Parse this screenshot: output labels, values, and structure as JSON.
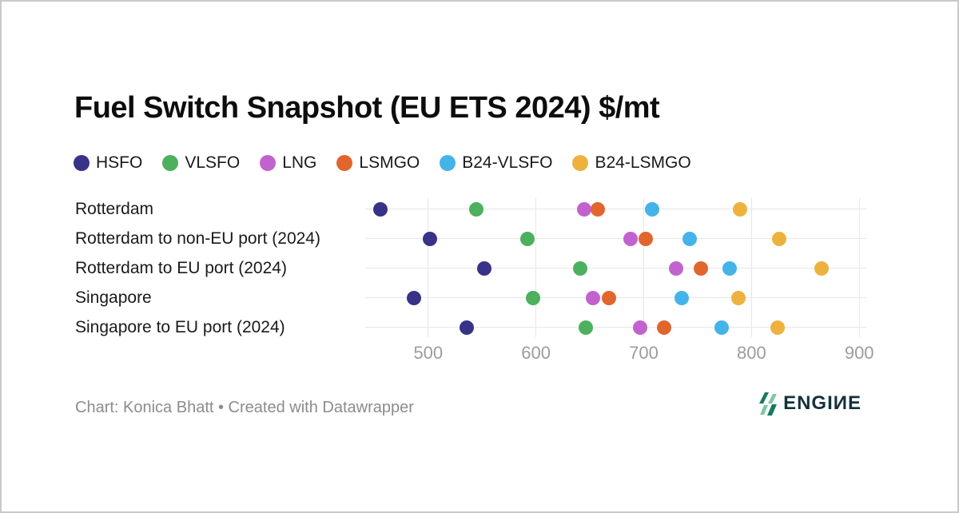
{
  "title": "Fuel Switch Snapshot (EU ETS 2024) $/mt",
  "footer": {
    "attribution": "Chart: Konica Bhatt • Created with Datawrapper",
    "logo_text": "ENGIИE",
    "logo_colors": {
      "dark_green": "#177a5e",
      "light_green": "#7ec7a2",
      "text": "#14313b"
    }
  },
  "chart_data": {
    "type": "scatter",
    "title": "Fuel Switch Snapshot (EU ETS 2024) $/mt",
    "xlabel": "",
    "ylabel": "",
    "xlim": [
      442,
      907
    ],
    "x_ticks": [
      500,
      600,
      700,
      800,
      900
    ],
    "grid": "vertical",
    "legend_position": "top",
    "categories": [
      "Rotterdam",
      "Rotterdam to non-EU port (2024)",
      "Rotterdam to EU port (2024)",
      "Singapore",
      "Singapore to EU port (2024)"
    ],
    "series": [
      {
        "name": "HSFO",
        "color": "#393289",
        "values": [
          456,
          502,
          552,
          487,
          536
        ]
      },
      {
        "name": "VLSFO",
        "color": "#4cb05e",
        "values": [
          545,
          592,
          641,
          597,
          646
        ]
      },
      {
        "name": "LNG",
        "color": "#c262ce",
        "values": [
          645,
          688,
          730,
          653,
          697
        ]
      },
      {
        "name": "LSMGO",
        "color": "#e1662e",
        "values": [
          657,
          702,
          753,
          668,
          719
        ]
      },
      {
        "name": "B24-VLSFO",
        "color": "#44b3e8",
        "values": [
          708,
          743,
          780,
          735,
          772
        ]
      },
      {
        "name": "B24-LSMGO",
        "color": "#edb23e",
        "values": [
          789,
          826,
          865,
          788,
          824
        ]
      }
    ]
  }
}
